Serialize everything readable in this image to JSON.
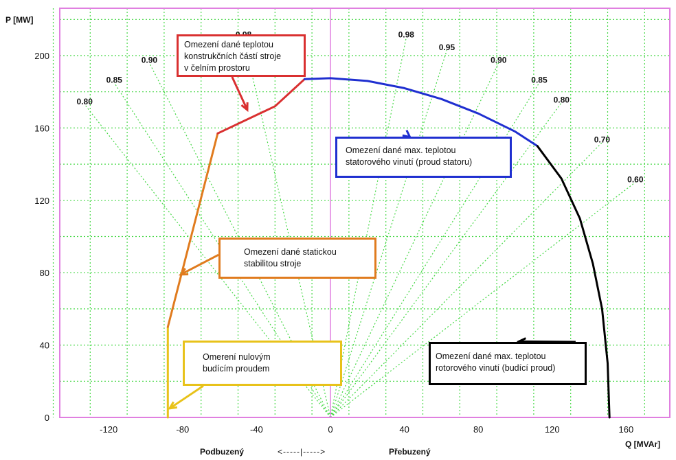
{
  "chart_data": {
    "type": "line",
    "title": "",
    "xlabel": "Q [MVAr]",
    "ylabel": "P [MW]",
    "xlim": [
      -150,
      180
    ],
    "ylim": [
      0,
      225
    ],
    "grid": true,
    "x_ticks": [
      -120,
      -80,
      -40,
      0,
      40,
      80,
      120,
      160
    ],
    "y_ticks": [
      0,
      40,
      80,
      120,
      160,
      200
    ],
    "series": [
      {
        "color": "#e8c21a",
        "points": [
          [
            -88,
            0
          ],
          [
            -88,
            50
          ]
        ]
      },
      {
        "color": "#e07b1e",
        "points": [
          [
            -88,
            50
          ],
          [
            -61,
            157
          ]
        ]
      },
      {
        "color": "#d93030",
        "points": [
          [
            -61,
            157
          ],
          [
            -30,
            172
          ],
          [
            -14,
            187
          ]
        ]
      },
      {
        "color": "#1f2fd0",
        "points": [
          [
            -14,
            187
          ],
          [
            0,
            187.5
          ],
          [
            20,
            186
          ],
          [
            40,
            182
          ],
          [
            60,
            176
          ],
          [
            80,
            168
          ],
          [
            100,
            158
          ],
          [
            112,
            150
          ]
        ]
      },
      {
        "color": "#000000",
        "points": [
          [
            112,
            150
          ],
          [
            125,
            132
          ],
          [
            135,
            110
          ],
          [
            142,
            85
          ],
          [
            147,
            60
          ],
          [
            150,
            30
          ],
          [
            151,
            0
          ]
        ]
      }
    ],
    "power_factor_labels": [
      {
        "label": "0.80",
        "q": -133,
        "p": 173
      },
      {
        "label": "0.85",
        "q": -117,
        "p": 185
      },
      {
        "label": "0.90",
        "q": -98,
        "p": 196
      },
      {
        "label": "0.98",
        "q": -47,
        "p": 210
      },
      {
        "label": "0.98",
        "q": 41,
        "p": 210
      },
      {
        "label": "0.95",
        "q": 63,
        "p": 203
      },
      {
        "label": "0.90",
        "q": 91,
        "p": 196
      },
      {
        "label": "0.85",
        "q": 113,
        "p": 185
      },
      {
        "label": "0.80",
        "q": 125,
        "p": 174
      },
      {
        "label": "0.70",
        "q": 147,
        "p": 152
      },
      {
        "label": "0.60",
        "q": 165,
        "p": 130
      }
    ],
    "annotations": [
      {
        "key": "rotor",
        "lines": [
          "Omezení dané max. teplotou",
          "rotorového vinutí (budící proud)"
        ],
        "border": "#000000",
        "target": [
          102,
          42
        ]
      },
      {
        "key": "stator",
        "lines": [
          "Omezení dané max. teplotou",
          "statorového vinutí (proud statoru)"
        ],
        "border": "#1f2fd0",
        "target": [
          43,
          155
        ]
      },
      {
        "key": "end_region",
        "lines": [
          "Omezení dané teplotou",
          "konstrukčních částí stroje",
          "v čelním prostoru"
        ],
        "border": "#d93030",
        "target": [
          -45,
          170
        ]
      },
      {
        "key": "stability",
        "lines": [
          "Omezení dané statickou",
          "stabilitou stroje"
        ],
        "border": "#e07b1e",
        "target": [
          -81,
          79
        ]
      },
      {
        "key": "zero_excitation",
        "lines": [
          "Omerení nulovým",
          "budícím proudem"
        ],
        "border": "#e8c21a",
        "target": [
          -87,
          5
        ]
      }
    ],
    "bottom_labels": {
      "left": "Podbuzený",
      "arrow": "<-----|-----> ",
      "right": "Přebuzený"
    },
    "colors": {
      "grid": "#46d846",
      "frame": "#e080e0"
    }
  }
}
